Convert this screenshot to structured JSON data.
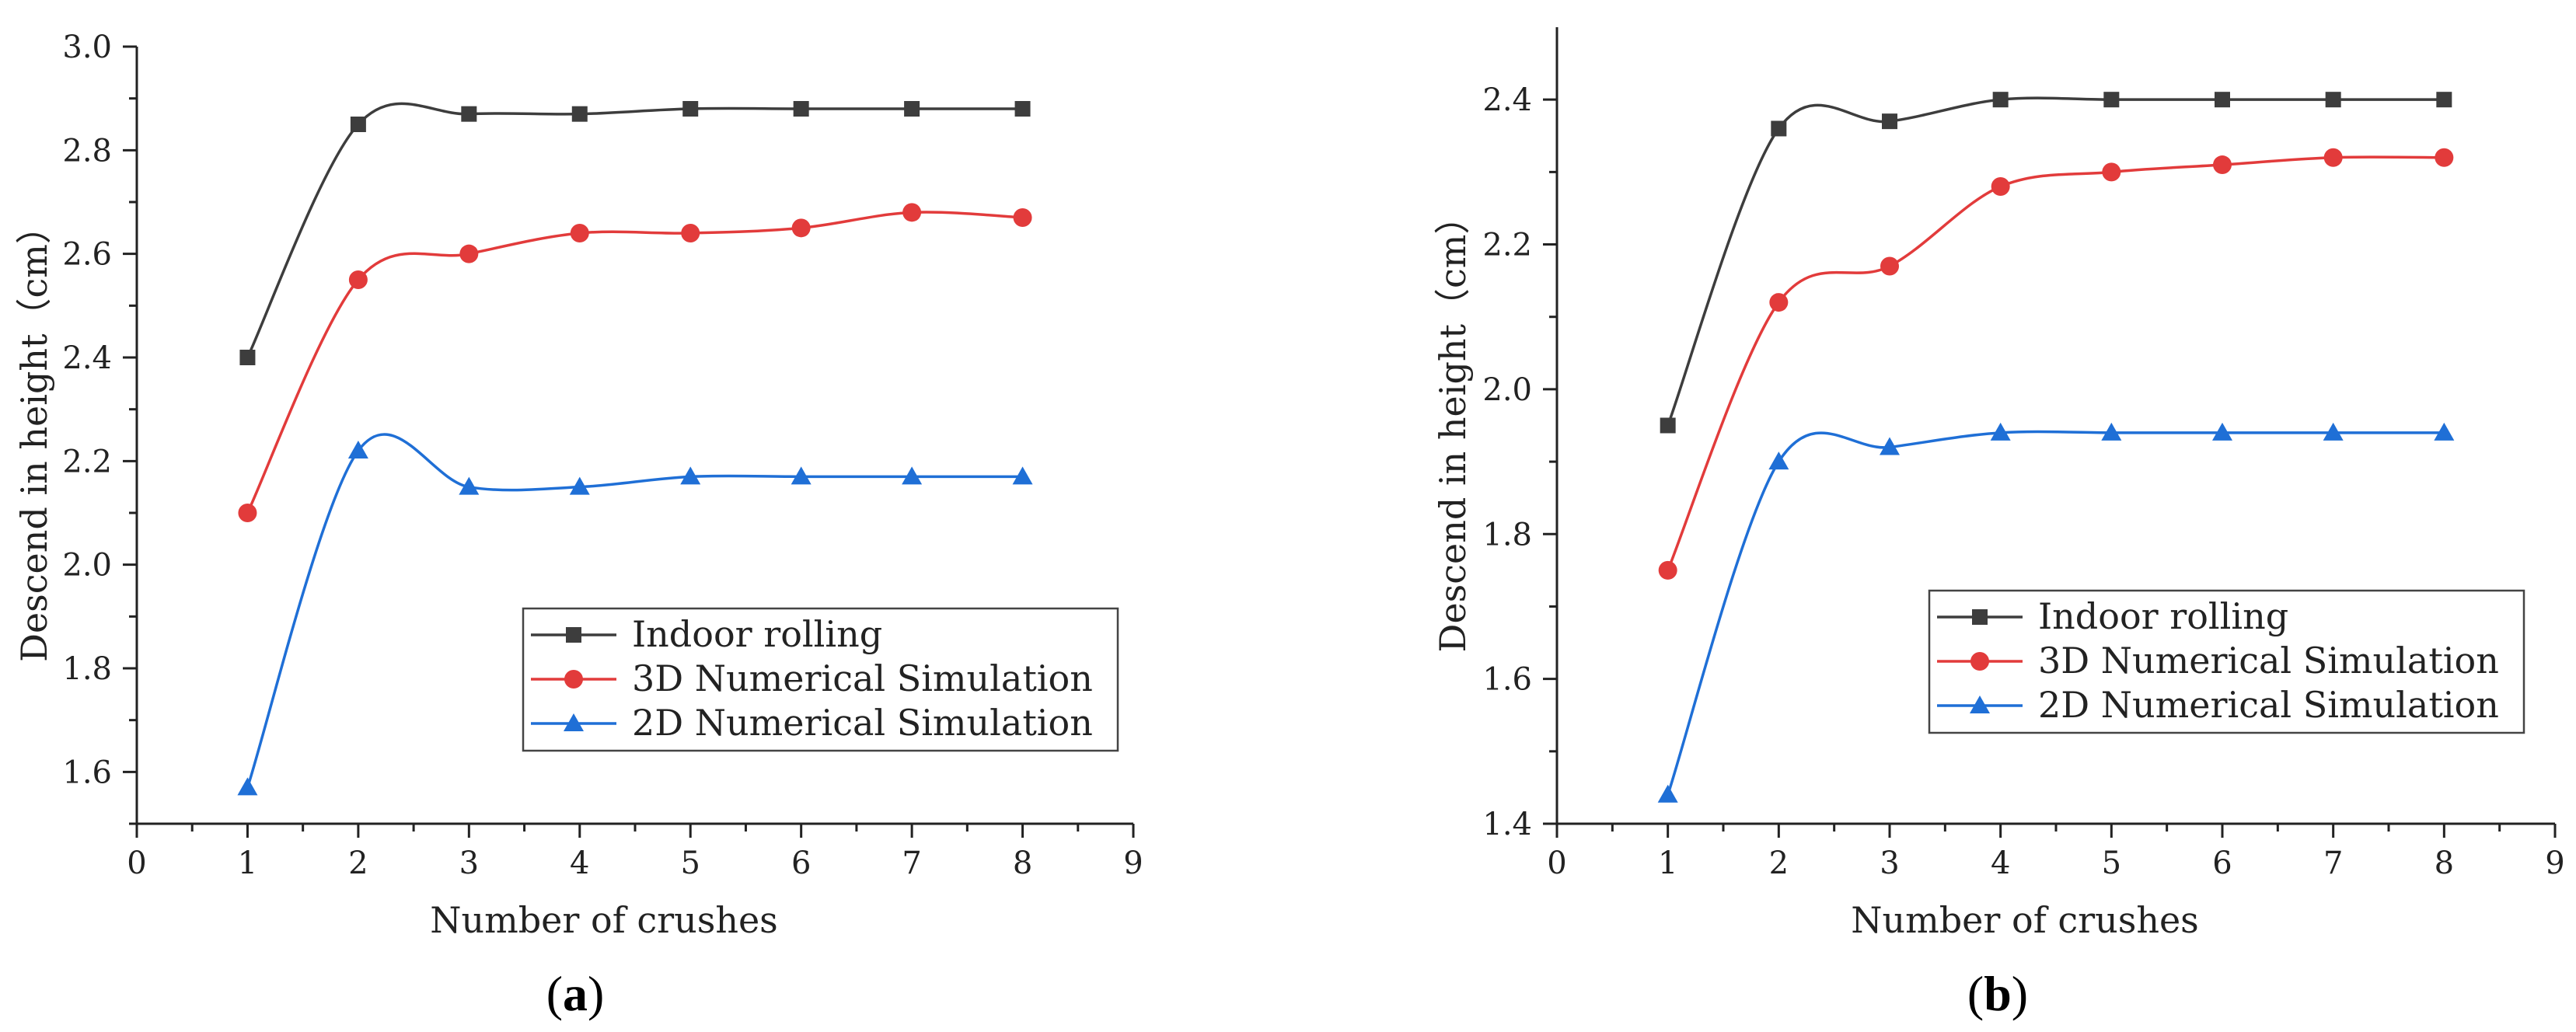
{
  "colors": {
    "indoor": "#3d3d3d",
    "sim3d": "#e23b3b",
    "sim2d": "#1f6fd6",
    "axis": "#222222"
  },
  "chart_data": [
    {
      "type": "line",
      "panel_label": "a",
      "xlabel": "Number of crushes",
      "ylabel": "Descend in height（cm）",
      "xlim": [
        0,
        9
      ],
      "ylim": [
        1.5,
        3.0
      ],
      "xticks": [
        0,
        1,
        2,
        3,
        4,
        5,
        6,
        7,
        8,
        9
      ],
      "xtick_labels": [
        "0",
        "1",
        "2",
        "3",
        "4",
        "5",
        "6",
        "7",
        "8",
        "9"
      ],
      "yticks": [
        1.6,
        1.8,
        2.0,
        2.2,
        2.4,
        2.6,
        2.8,
        3.0
      ],
      "ytick_labels": [
        "1.6",
        "1.8",
        "2.0",
        "2.2",
        "2.4",
        "2.6",
        "2.8",
        "3.0"
      ],
      "legend_position": "lower-right",
      "x": [
        1,
        2,
        3,
        4,
        5,
        6,
        7,
        8
      ],
      "series": [
        {
          "name": "Indoor rolling",
          "marker": "square",
          "color_key": "indoor",
          "values": [
            2.4,
            2.85,
            2.87,
            2.87,
            2.88,
            2.88,
            2.88,
            2.88
          ]
        },
        {
          "name": "3D Numerical Simulation",
          "marker": "circle",
          "color_key": "sim3d",
          "values": [
            2.1,
            2.55,
            2.6,
            2.64,
            2.64,
            2.65,
            2.68,
            2.67
          ]
        },
        {
          "name": "2D Numerical Simulation",
          "marker": "triangle",
          "color_key": "sim2d",
          "values": [
            1.57,
            2.22,
            2.15,
            2.15,
            2.17,
            2.17,
            2.17,
            2.17
          ]
        }
      ]
    },
    {
      "type": "line",
      "panel_label": "b",
      "xlabel": "Number of crushes",
      "ylabel": "Descend in height（cm）",
      "xlim": [
        0,
        9
      ],
      "ylim": [
        1.4,
        2.5
      ],
      "xticks": [
        0,
        1,
        2,
        3,
        4,
        5,
        6,
        7,
        8,
        9
      ],
      "xtick_labels": [
        "0",
        "1",
        "2",
        "3",
        "4",
        "5",
        "6",
        "7",
        "8",
        "9"
      ],
      "yticks": [
        1.4,
        1.6,
        1.8,
        2.0,
        2.2,
        2.4
      ],
      "ytick_labels": [
        "1.4",
        "1.6",
        "1.8",
        "2.0",
        "2.2",
        "2.4"
      ],
      "legend_position": "lower-right",
      "x": [
        1,
        2,
        3,
        4,
        5,
        6,
        7,
        8
      ],
      "series": [
        {
          "name": "Indoor rolling",
          "marker": "square",
          "color_key": "indoor",
          "values": [
            1.95,
            2.36,
            2.37,
            2.4,
            2.4,
            2.4,
            2.4,
            2.4
          ]
        },
        {
          "name": "3D Numerical Simulation",
          "marker": "circle",
          "color_key": "sim3d",
          "values": [
            1.75,
            2.12,
            2.17,
            2.28,
            2.3,
            2.31,
            2.32,
            2.32
          ]
        },
        {
          "name": "2D Numerical Simulation",
          "marker": "triangle",
          "color_key": "sim2d",
          "values": [
            1.44,
            1.9,
            1.92,
            1.94,
            1.94,
            1.94,
            1.94,
            1.94
          ]
        }
      ]
    }
  ]
}
